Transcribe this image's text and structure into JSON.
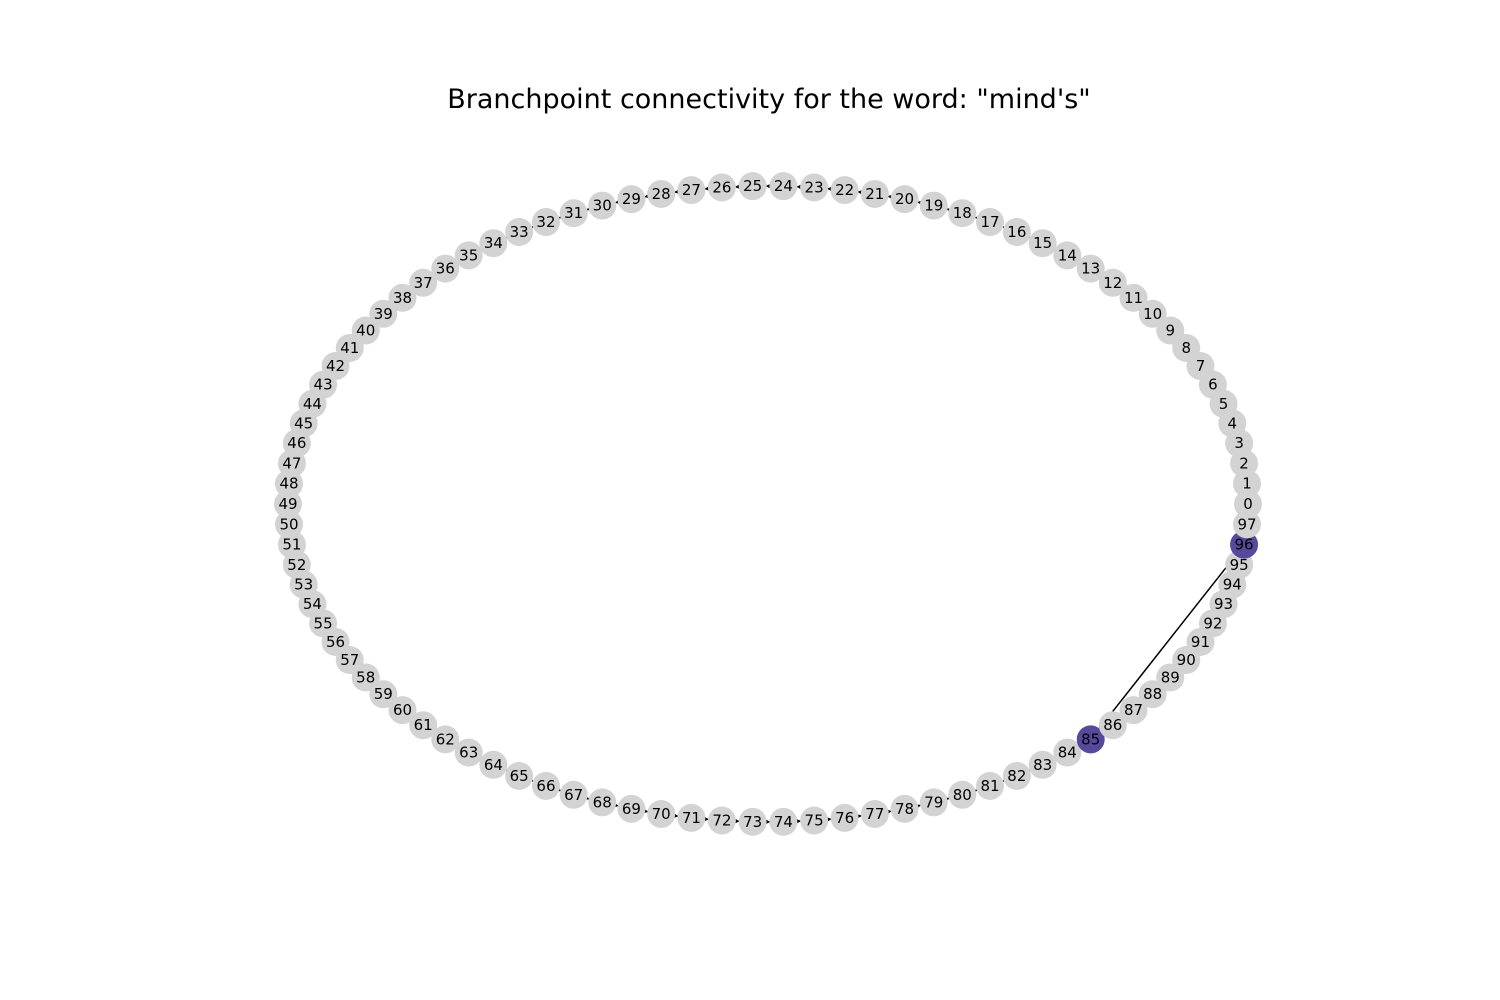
{
  "title": "Branchpoint connectivity for the word: \"mind's\"",
  "graph": {
    "node_count": 98,
    "node_labels": [
      "0",
      "1",
      "2",
      "3",
      "4",
      "5",
      "6",
      "7",
      "8",
      "9",
      "10",
      "11",
      "12",
      "13",
      "14",
      "15",
      "16",
      "17",
      "18",
      "19",
      "20",
      "21",
      "22",
      "23",
      "24",
      "25",
      "26",
      "27",
      "28",
      "29",
      "30",
      "31",
      "32",
      "33",
      "34",
      "35",
      "36",
      "37",
      "38",
      "39",
      "40",
      "41",
      "42",
      "43",
      "44",
      "45",
      "46",
      "47",
      "48",
      "49",
      "50",
      "51",
      "52",
      "53",
      "54",
      "55",
      "56",
      "57",
      "58",
      "59",
      "60",
      "61",
      "62",
      "63",
      "64",
      "65",
      "66",
      "67",
      "68",
      "69",
      "70",
      "71",
      "72",
      "73",
      "74",
      "75",
      "76",
      "77",
      "78",
      "79",
      "80",
      "81",
      "82",
      "83",
      "84",
      "85",
      "86",
      "87",
      "88",
      "89",
      "90",
      "91",
      "92",
      "93",
      "94",
      "95",
      "96",
      "97"
    ],
    "sequence_direction": "increasing",
    "highlighted_nodes": [
      "85",
      "96"
    ],
    "extra_edges": [
      {
        "from": "96",
        "to": "85"
      }
    ],
    "colors": {
      "node_default": "#d3d3d3",
      "node_highlight": "#56499c",
      "edge": "#000000",
      "label": "#000000"
    }
  }
}
